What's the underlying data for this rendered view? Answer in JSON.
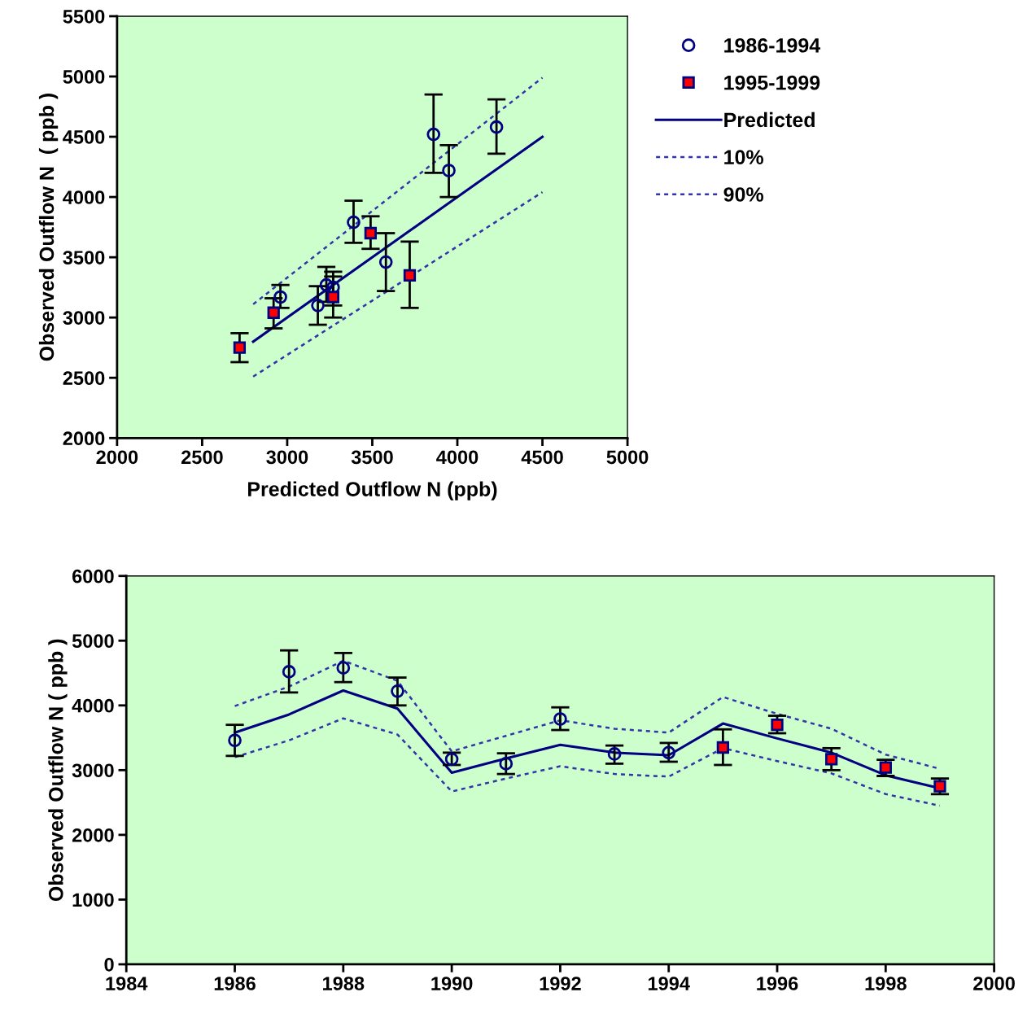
{
  "chart_data": [
    {
      "type": "scatter",
      "xlabel": "Predicted Outflow N (ppb)",
      "ylabel": "Observed Outflow N  ( ppb )",
      "xlim": [
        2000,
        5000
      ],
      "xticks": [
        2000,
        2500,
        3000,
        3500,
        4000,
        4500,
        5000
      ],
      "ylim": [
        2000,
        5500
      ],
      "yticks": [
        2000,
        2500,
        3000,
        3500,
        4000,
        4500,
        5000,
        5500
      ],
      "grid": false,
      "legend": "right",
      "series": [
        {
          "name": "1986-1994",
          "marker": "circle",
          "color": "#000080",
          "x": [
            3580,
            3860,
            4230,
            3950,
            2960,
            3180,
            3390,
            3270,
            3230
          ],
          "values": [
            3460,
            4520,
            4580,
            4220,
            3170,
            3100,
            3790,
            3250,
            3270
          ],
          "errors": [
            [
              3220,
              3700
            ],
            [
              4200,
              4850
            ],
            [
              4360,
              4810
            ],
            [
              4000,
              4430
            ],
            [
              3080,
              3270
            ],
            [
              2940,
              3260
            ],
            [
              3620,
              3970
            ],
            [
              3100,
              3380
            ],
            [
              3130,
              3420
            ]
          ]
        },
        {
          "name": "1995-1999",
          "marker": "square",
          "color": "#ff0000",
          "x": [
            3720,
            3490,
            3270,
            2920,
            2720
          ],
          "values": [
            3350,
            3700,
            3170,
            3040,
            2750
          ],
          "errors": [
            [
              3080,
              3630
            ],
            [
              3570,
              3840
            ],
            [
              3000,
              3340
            ],
            [
              2910,
              3160
            ],
            [
              2630,
              2870
            ]
          ]
        },
        {
          "name": "Predicted",
          "type": "line",
          "line_style": "solid",
          "color": "#000080",
          "x": [
            2800,
            4500
          ],
          "values": [
            2800,
            4500
          ]
        },
        {
          "name": "10%",
          "type": "line",
          "line_style": "dotted",
          "color": "#3333aa",
          "x": [
            2800,
            4500
          ],
          "values": [
            2510,
            4040
          ]
        },
        {
          "name": "90%",
          "type": "line",
          "line_style": "dotted",
          "color": "#3333aa",
          "x": [
            2800,
            4500
          ],
          "values": [
            3110,
            4990
          ]
        }
      ]
    },
    {
      "type": "line",
      "ylabel": "Observed Outflow N ( ppb )",
      "xlim": [
        1984,
        2000
      ],
      "xticks": [
        1984,
        1986,
        1988,
        1990,
        1992,
        1994,
        1996,
        1998,
        2000
      ],
      "ylim": [
        0,
        6000
      ],
      "yticks": [
        0,
        1000,
        2000,
        3000,
        4000,
        5000,
        6000
      ],
      "grid": false,
      "legend": false,
      "series": [
        {
          "line_style": "solid",
          "color": "#000080",
          "x": [
            1986,
            1987,
            1988,
            1989,
            1990,
            1991,
            1992,
            1993,
            1994,
            1995,
            1996,
            1997,
            1998,
            1999
          ],
          "values": [
            3580,
            3860,
            4230,
            3950,
            2960,
            3180,
            3390,
            3270,
            3230,
            3720,
            3490,
            3270,
            2920,
            2720
          ]
        },
        {
          "line_style": "dotted",
          "color": "#3333aa",
          "x": [
            1986,
            1987,
            1988,
            1989,
            1990,
            1991,
            1992,
            1993,
            1994,
            1995,
            1996,
            1997,
            1998,
            1999
          ],
          "values": [
            3200,
            3460,
            3800,
            3550,
            2670,
            2870,
            3060,
            2940,
            2900,
            3340,
            3140,
            2950,
            2630,
            2450
          ]
        },
        {
          "line_style": "dotted",
          "color": "#3333aa",
          "x": [
            1986,
            1987,
            1988,
            1989,
            1990,
            1991,
            1992,
            1993,
            1994,
            1995,
            1996,
            1997,
            1998,
            1999
          ],
          "values": [
            3990,
            4290,
            4690,
            4380,
            3290,
            3530,
            3770,
            3640,
            3580,
            4130,
            3870,
            3640,
            3240,
            3020
          ]
        },
        {
          "type": "scatter",
          "marker": "circle",
          "color": "#000080",
          "x": [
            1986,
            1987,
            1988,
            1989,
            1990,
            1991,
            1992,
            1993,
            1994
          ],
          "values": [
            3460,
            4520,
            4580,
            4220,
            3170,
            3100,
            3790,
            3250,
            3270
          ],
          "errors": [
            [
              3220,
              3700
            ],
            [
              4200,
              4850
            ],
            [
              4360,
              4810
            ],
            [
              4000,
              4430
            ],
            [
              3080,
              3270
            ],
            [
              2940,
              3260
            ],
            [
              3620,
              3970
            ],
            [
              3100,
              3380
            ],
            [
              3130,
              3420
            ]
          ]
        },
        {
          "type": "scatter",
          "marker": "square",
          "color": "#ff0000",
          "x": [
            1995,
            1996,
            1997,
            1998,
            1999
          ],
          "values": [
            3350,
            3700,
            3170,
            3040,
            2750
          ],
          "errors": [
            [
              3080,
              3630
            ],
            [
              3570,
              3840
            ],
            [
              3000,
              3340
            ],
            [
              2910,
              3160
            ],
            [
              2630,
              2870
            ]
          ]
        }
      ]
    }
  ]
}
